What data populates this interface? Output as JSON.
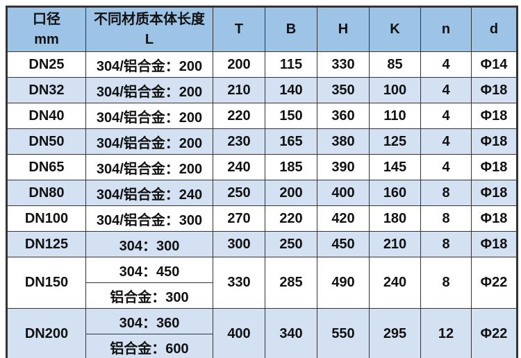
{
  "table": {
    "header": {
      "dn": {
        "line1": "口径",
        "line2": "mm"
      },
      "l": {
        "line1": "不同材质本体长度",
        "line2": "L"
      },
      "t": "T",
      "b": "B",
      "h": "H",
      "k": "K",
      "n": "n",
      "d": "d"
    },
    "rows": [
      {
        "dn": "DN25",
        "L": [
          "304/铝合金：200"
        ],
        "T": "200",
        "B": "115",
        "H": "330",
        "K": "85",
        "n": "4",
        "d": "Φ14",
        "band": false
      },
      {
        "dn": "DN32",
        "L": [
          "304/铝合金：200"
        ],
        "T": "210",
        "B": "140",
        "H": "350",
        "K": "100",
        "n": "4",
        "d": "Φ18",
        "band": true
      },
      {
        "dn": "DN40",
        "L": [
          "304/铝合金：200"
        ],
        "T": "220",
        "B": "150",
        "H": "360",
        "K": "110",
        "n": "4",
        "d": "Φ18",
        "band": false
      },
      {
        "dn": "DN50",
        "L": [
          "304/铝合金：200"
        ],
        "T": "230",
        "B": "165",
        "H": "380",
        "K": "125",
        "n": "4",
        "d": "Φ18",
        "band": true
      },
      {
        "dn": "DN65",
        "L": [
          "304/铝合金：200"
        ],
        "T": "240",
        "B": "185",
        "H": "390",
        "K": "145",
        "n": "4",
        "d": "Φ18",
        "band": false
      },
      {
        "dn": "DN80",
        "L": [
          "304/铝合金：240"
        ],
        "T": "250",
        "B": "200",
        "H": "400",
        "K": "160",
        "n": "8",
        "d": "Φ18",
        "band": true
      },
      {
        "dn": "DN100",
        "L": [
          "304/铝合金：300"
        ],
        "T": "270",
        "B": "220",
        "H": "420",
        "K": "180",
        "n": "8",
        "d": "Φ18",
        "band": false
      },
      {
        "dn": "DN125",
        "L": [
          "304：300"
        ],
        "T": "300",
        "B": "250",
        "H": "450",
        "K": "210",
        "n": "8",
        "d": "Φ18",
        "band": true
      },
      {
        "dn": "DN150",
        "L": [
          "304：450",
          "铝合金：300"
        ],
        "T": "330",
        "B": "285",
        "H": "490",
        "K": "240",
        "n": "8",
        "d": "Φ22",
        "band": false
      },
      {
        "dn": "DN200",
        "L": [
          "304：360",
          "铝合金：600"
        ],
        "T": "400",
        "B": "340",
        "H": "550",
        "K": "295",
        "n": "12",
        "d": "Φ22",
        "band": true
      }
    ],
    "partial_row_visible": true,
    "colors": {
      "header_bg": "#9dc3e6",
      "band_bg": "#d3e1f3",
      "border": "#333333",
      "text": "#111111"
    }
  }
}
